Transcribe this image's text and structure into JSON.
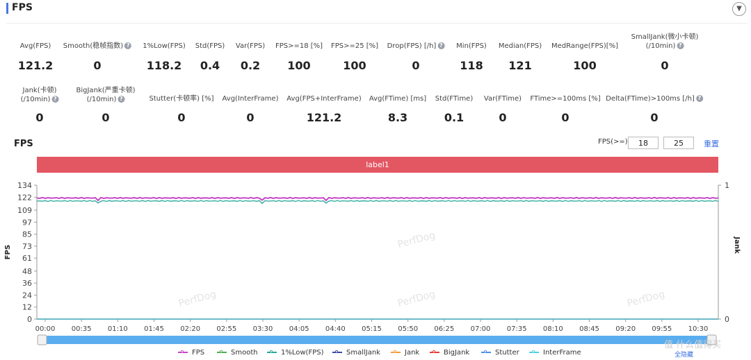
{
  "header": {
    "title": "FPS",
    "collapse_icon": "chevron-down-icon"
  },
  "metrics_row1": [
    {
      "label": "Avg(FPS)",
      "value": "121.2",
      "help": false
    },
    {
      "label": "Smooth(稳帧指数)",
      "value": "0",
      "help": true
    },
    {
      "label": "1%Low(FPS)",
      "value": "118.2",
      "help": false
    },
    {
      "label": "Std(FPS)",
      "value": "0.4",
      "help": false
    },
    {
      "label": "Var(FPS)",
      "value": "0.2",
      "help": false
    },
    {
      "label": "FPS>=18 [%]",
      "value": "100",
      "help": false
    },
    {
      "label": "FPS>=25 [%]",
      "value": "100",
      "help": false
    },
    {
      "label": "Drop(FPS) [/h]",
      "value": "0",
      "help": true
    },
    {
      "label": "Min(FPS)",
      "value": "118",
      "help": false
    },
    {
      "label": "Median(FPS)",
      "value": "121",
      "help": false
    },
    {
      "label": "MedRange(FPS)[%]",
      "value": "100",
      "help": false
    },
    {
      "label": "SmallJank(微小卡顿)",
      "label2": "(/10min)",
      "value": "0",
      "help": true
    }
  ],
  "metrics_row2": [
    {
      "label": "Jank(卡顿)",
      "label2": "(/10min)",
      "value": "0",
      "help": true
    },
    {
      "label": "BigJank(严重卡顿)",
      "label2": "(/10min)",
      "value": "0",
      "help": true
    },
    {
      "label": "Stutter(卡顿率) [%]",
      "value": "0",
      "help": false
    },
    {
      "label": "Avg(InterFrame)",
      "value": "0",
      "help": false
    },
    {
      "label": "Avg(FPS+InterFrame)",
      "value": "121.2",
      "help": false
    },
    {
      "label": "Avg(FTime) [ms]",
      "value": "8.3",
      "help": false
    },
    {
      "label": "Std(FTime)",
      "value": "0.1",
      "help": false
    },
    {
      "label": "Var(FTime)",
      "value": "0",
      "help": false
    },
    {
      "label": "FTime>=100ms [%]",
      "value": "0",
      "help": false
    },
    {
      "label": "Delta(FTime)>100ms [/h]",
      "value": "0",
      "help": true
    }
  ],
  "chart_header": {
    "title": "FPS",
    "threshold_label": "FPS(>=)",
    "threshold1": "18",
    "threshold2": "25",
    "reset_label": "重置"
  },
  "label_bar": "label1",
  "watermark": "PerfDog",
  "site_watermark": "值 什么值得买",
  "hide_all_label": "全隐藏",
  "chart_data": {
    "type": "line",
    "ylabel": "FPS",
    "y2label": "Jank",
    "ylim": [
      0,
      134
    ],
    "yticks": [
      "0",
      "12",
      "24",
      "36",
      "48",
      "61",
      "73",
      "85",
      "97",
      "109",
      "122",
      "134"
    ],
    "y2ticks": [
      "0",
      "1"
    ],
    "xticks": [
      "00:00",
      "00:35",
      "01:10",
      "01:45",
      "02:20",
      "02:55",
      "03:30",
      "04:05",
      "04:40",
      "05:15",
      "05:50",
      "06:25",
      "07:00",
      "07:35",
      "08:10",
      "08:45",
      "09:20",
      "09:55",
      "10:30"
    ],
    "series": [
      {
        "name": "FPS",
        "color": "#c545c5",
        "value": 121.2
      },
      {
        "name": "Smooth",
        "color": "#4caf50",
        "value": 0
      },
      {
        "name": "1%Low(FPS)",
        "color": "#26a69a",
        "value": 118.2
      },
      {
        "name": "SmallJank",
        "color": "#3949ab",
        "value": 0
      },
      {
        "name": "Jank",
        "color": "#f39c3c",
        "value": 0
      },
      {
        "name": "BigJank",
        "color": "#e53935",
        "value": 0
      },
      {
        "name": "Stutter",
        "color": "#4a90e2",
        "value": 0
      },
      {
        "name": "InterFrame",
        "color": "#4dd0e1",
        "value": 0
      }
    ]
  },
  "colors": {
    "accent": "#4a78e0",
    "label_bar": "#e35763",
    "slider": "#5aaef0",
    "link": "#3a6fe0"
  }
}
